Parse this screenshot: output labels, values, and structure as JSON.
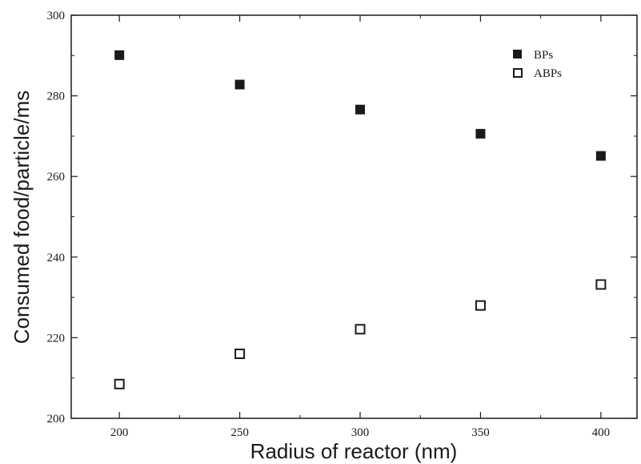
{
  "chart_data": {
    "type": "scatter",
    "xlabel": "Radius of reactor (nm)",
    "ylabel": "Consumed food/particle/ms",
    "xlim": [
      180,
      415
    ],
    "ylim": [
      200,
      300
    ],
    "xticks": [
      200,
      250,
      300,
      350,
      400
    ],
    "yticks": [
      200,
      220,
      240,
      260,
      280,
      300
    ],
    "xtick_labels": [
      "200",
      "250",
      "300",
      "350",
      "400"
    ],
    "ytick_labels": [
      "200",
      "220",
      "240",
      "260",
      "280",
      "300"
    ],
    "grid": false,
    "legend_position": "top-right",
    "series": [
      {
        "name": "BPs",
        "marker": "filled-square",
        "color": "#1a1a1a",
        "x": [
          200,
          250,
          300,
          350,
          400
        ],
        "y": [
          290.1,
          282.8,
          276.6,
          270.6,
          265.1
        ]
      },
      {
        "name": "ABPs",
        "marker": "open-square",
        "color": "#1a1a1a",
        "x": [
          200,
          250,
          300,
          350,
          400
        ],
        "y": [
          208.5,
          216.0,
          222.1,
          228.0,
          233.2
        ]
      }
    ]
  }
}
